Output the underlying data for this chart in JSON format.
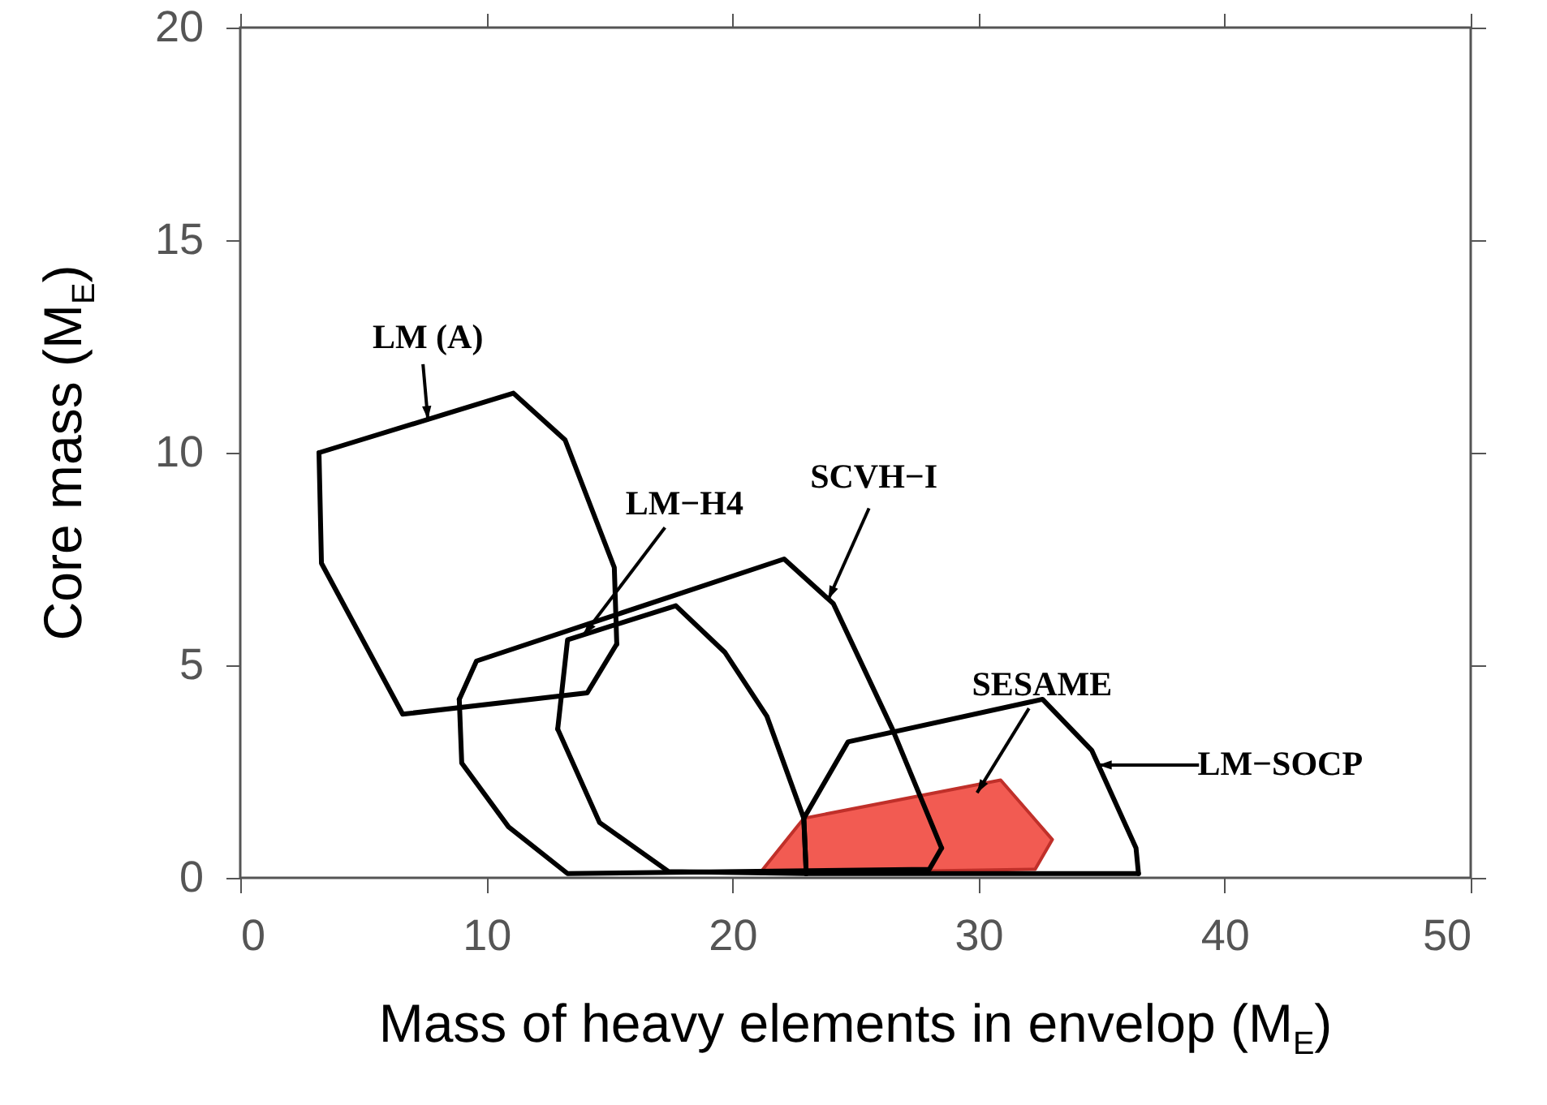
{
  "chart_data": {
    "type": "line",
    "xlabel": "Mass of heavy elements in envelop (M$_{E}$)",
    "ylabel": "Core mass (M$_{E}$)",
    "xlim": [
      0,
      50
    ],
    "xticks": [
      0,
      10,
      20,
      30,
      40,
      50
    ],
    "ylim": [
      0,
      20
    ],
    "yticks": [
      0,
      5,
      10,
      15,
      20
    ],
    "grid": false,
    "marker": "none",
    "line_style": "solid",
    "series": [
      {
        "name": "LM (A)",
        "color": "#000000",
        "x": [
          3.2,
          11.1,
          13.2,
          15.2,
          15.3
        ],
        "values": [
          10.0,
          11.4,
          10.3,
          7.3,
          5.5
        ]
      },
      {
        "color": "#000000",
        "x": [
          3.2,
          3.3,
          6.6,
          14.1,
          15.3
        ],
        "values": [
          10.0,
          7.4,
          3.85,
          4.35,
          5.5
        ]
      },
      {
        "name": "LM−H4",
        "color": "#000000",
        "x": [
          12.9,
          13.3,
          17.7,
          19.7,
          21.4,
          22.9,
          23.0
        ],
        "values": [
          3.5,
          5.6,
          6.4,
          5.3,
          3.8,
          1.4,
          0.1
        ]
      },
      {
        "color": "#000000",
        "x": [
          12.9,
          14.6,
          17.4,
          23.0
        ],
        "values": [
          3.5,
          1.3,
          0.15,
          0.1
        ]
      },
      {
        "name": "SCVH−I",
        "color": "#000000",
        "x": [
          8.9,
          9.6,
          22.1,
          24.1,
          26.5,
          28.5
        ],
        "values": [
          4.2,
          5.1,
          7.5,
          6.45,
          3.5,
          0.7
        ]
      },
      {
        "color": "#000000",
        "x": [
          8.9,
          9.0,
          10.9,
          13.3,
          28.0,
          28.5
        ],
        "values": [
          4.2,
          2.7,
          1.2,
          0.1,
          0.2,
          0.7
        ]
      },
      {
        "name": "LM−SOCP",
        "color": "#000000",
        "x": [
          22.9,
          24.7,
          32.6,
          34.6,
          36.4,
          36.5
        ],
        "values": [
          1.4,
          3.2,
          4.2,
          3.0,
          0.7,
          0.1
        ]
      },
      {
        "color": "#000000",
        "x": [
          22.9,
          23.0,
          36.5
        ],
        "values": [
          1.4,
          0.1,
          0.1
        ]
      },
      {
        "name": "SESAME",
        "type": "area",
        "color": "#f25b52",
        "x": [
          21.1,
          22.9,
          30.9,
          33.0,
          32.3,
          21.1
        ],
        "values": [
          0.1,
          1.4,
          2.3,
          0.9,
          0.2,
          0.1
        ]
      }
    ]
  }
}
